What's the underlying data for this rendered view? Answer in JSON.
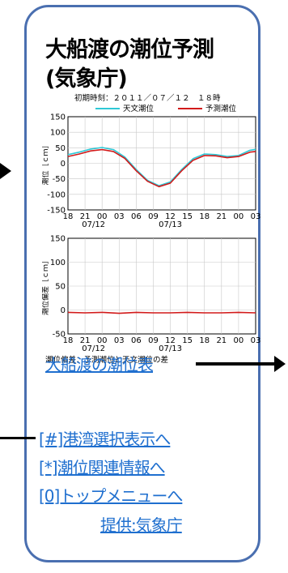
{
  "page": {
    "title_line1": "大船渡の潮位予測",
    "title_line2": "(気象庁)"
  },
  "chart_header": {
    "initial_time": "初期時刻：２０１１／０７／１２　１８時",
    "legend_astronomical": "天文潮位",
    "legend_forecast": "予測潮位"
  },
  "chart_data": [
    {
      "type": "line",
      "ylabel": "潮位［ｃｍ］",
      "ylim": [
        -150,
        150
      ],
      "yticks": [
        150,
        100,
        50,
        0,
        -50,
        -100,
        -150
      ],
      "xticks": [
        "18",
        "21",
        "00",
        "03",
        "06",
        "09",
        "12",
        "15",
        "18",
        "21",
        "00",
        "03"
      ],
      "date_labels": [
        "07/12",
        "07/13"
      ],
      "grid": true,
      "series": [
        {
          "name": "天文潮位",
          "color": "#2ec8d6",
          "x": [
            0,
            2,
            4,
            6,
            8,
            10,
            12,
            14,
            16,
            18,
            20,
            22,
            24,
            26,
            28,
            30,
            32,
            33
          ],
          "values": [
            28,
            36,
            46,
            51,
            44,
            20,
            -20,
            -55,
            -72,
            -60,
            -20,
            15,
            30,
            28,
            22,
            25,
            42,
            45
          ]
        },
        {
          "name": "予測潮位",
          "color": "#d21a1a",
          "x": [
            0,
            2,
            4,
            6,
            8,
            10,
            12,
            14,
            16,
            18,
            20,
            22,
            24,
            26,
            28,
            30,
            32,
            33
          ],
          "values": [
            22,
            30,
            40,
            44,
            38,
            16,
            -24,
            -58,
            -75,
            -64,
            -24,
            10,
            25,
            24,
            18,
            22,
            36,
            38
          ]
        }
      ]
    },
    {
      "type": "line",
      "ylabel": "潮位偏差［ｃｍ］",
      "ylim": [
        -50,
        150
      ],
      "yticks": [
        150,
        100,
        50,
        0,
        -50
      ],
      "xticks": [
        "18",
        "21",
        "00",
        "03",
        "06",
        "09",
        "12",
        "15",
        "18",
        "21",
        "00",
        "03"
      ],
      "date_labels": [
        "07/12",
        "07/13"
      ],
      "grid": true,
      "caption": "潮位偏差：予測潮位と天文潮位の差",
      "series": [
        {
          "name": "偏差",
          "color": "#d21a1a",
          "x": [
            0,
            3,
            6,
            9,
            12,
            15,
            18,
            21,
            24,
            27,
            30,
            33
          ],
          "values": [
            -5,
            -6,
            -5,
            -7,
            -5,
            -6,
            -6,
            -5,
            -6,
            -6,
            -5,
            -6
          ]
        }
      ]
    }
  ],
  "links": {
    "tide_table": "大船渡の潮位表",
    "harbor_select": "[#]港湾選択表示へ",
    "tide_info": "[*]潮位関連情報へ",
    "top_menu": "[0]トップメニューへ",
    "provider": "提供:気象庁"
  }
}
